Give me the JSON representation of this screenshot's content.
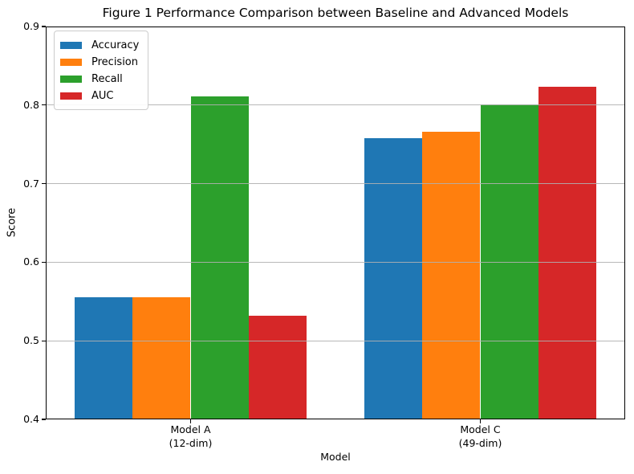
{
  "chart_data": {
    "type": "bar",
    "title": "Figure 1 Performance Comparison between Baseline and Advanced Models",
    "xlabel": "Model",
    "ylabel": "Score",
    "ylim": [
      0.4,
      0.9
    ],
    "yticks": [
      0.4,
      0.5,
      0.6,
      0.7,
      0.8,
      0.9
    ],
    "grid": true,
    "legend_position": "upper-left",
    "categories": [
      "Model A\n(12-dim)",
      "Model C\n(49-dim)"
    ],
    "category_lines": [
      [
        "Model A",
        "(12-dim)"
      ],
      [
        "Model C",
        "(49-dim)"
      ]
    ],
    "series": [
      {
        "name": "Accuracy",
        "color": "#1f77b4",
        "values": [
          0.555,
          0.758
        ]
      },
      {
        "name": "Precision",
        "color": "#ff7f0e",
        "values": [
          0.555,
          0.766
        ]
      },
      {
        "name": "Recall",
        "color": "#2ca02c",
        "values": [
          0.811,
          0.801
        ]
      },
      {
        "name": "AUC",
        "color": "#d62728",
        "values": [
          0.532,
          0.823
        ]
      }
    ],
    "colors": {
      "grid": "#b0b0b0",
      "spine": "#000000",
      "legend_border": "#cccccc"
    }
  }
}
